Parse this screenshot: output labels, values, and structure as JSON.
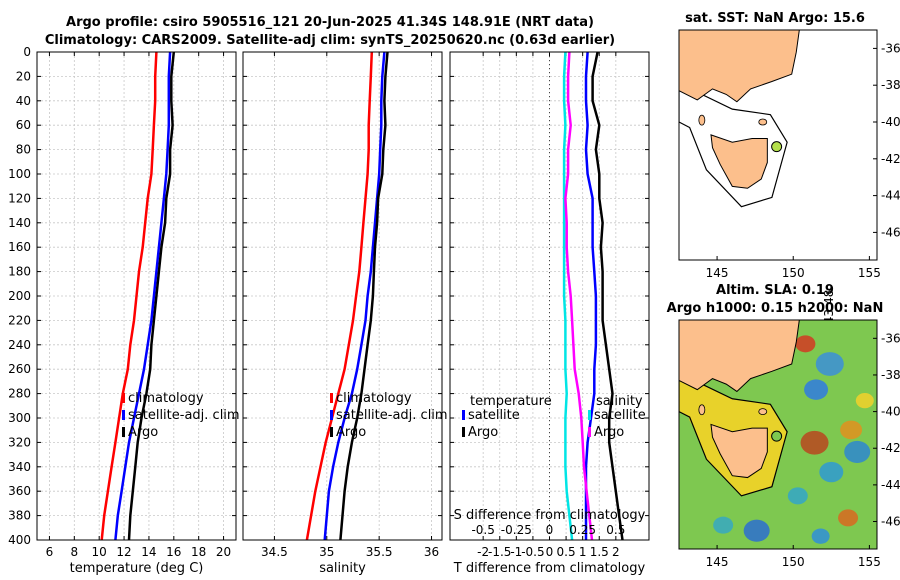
{
  "header": {
    "title_line1": "Argo profile: csiro 5905516_121 20-Jun-2025 41.34S 148.91E (NRT data)",
    "title_line2": "Climatology: CARS2009. Satellite-adj clim: synTS_20250620.nc (0.63d earlier)"
  },
  "credit": "©IMOS 25-Jun-2025 11:43:48",
  "colors": {
    "climatology": "#ff0000",
    "satellite": "#0000ff",
    "argo": "#000000",
    "temp_diff": "#ff00ff",
    "sal_diff": "#00e5e5",
    "land": "#fcbf8c",
    "sla_sea": "#7ec850"
  },
  "chart_data": [
    {
      "type": "line",
      "name": "temperature-panel",
      "xlabel": "temperature (deg C)",
      "ylabel": "depth",
      "xlim": [
        5,
        21
      ],
      "ylim": [
        400,
        0
      ],
      "xticks": [
        "6",
        "8",
        "10",
        "12",
        "14",
        "16",
        "18",
        "20"
      ],
      "xtick_values": [
        6,
        8,
        10,
        12,
        14,
        16,
        18,
        20
      ],
      "yticks": [
        "0",
        "20",
        "40",
        "60",
        "80",
        "100",
        "120",
        "140",
        "160",
        "180",
        "200",
        "220",
        "240",
        "260",
        "280",
        "300",
        "320",
        "340",
        "360",
        "380",
        "400"
      ],
      "ytick_values": [
        0,
        20,
        40,
        60,
        80,
        100,
        120,
        140,
        160,
        180,
        200,
        220,
        240,
        260,
        280,
        300,
        320,
        340,
        360,
        380,
        400
      ],
      "grid": true,
      "legend": [
        "climatology",
        "satellite-adj. clim",
        "Argo"
      ],
      "depth": [
        0,
        20,
        40,
        60,
        80,
        100,
        120,
        140,
        160,
        180,
        200,
        220,
        240,
        260,
        280,
        300,
        320,
        340,
        360,
        380,
        400
      ],
      "series": [
        {
          "name": "climatology",
          "values": [
            14.6,
            14.5,
            14.5,
            14.4,
            14.3,
            14.2,
            13.9,
            13.7,
            13.5,
            13.2,
            13.0,
            12.8,
            12.5,
            12.3,
            11.9,
            11.6,
            11.3,
            11.0,
            10.7,
            10.4,
            10.2
          ]
        },
        {
          "name": "satellite-adj. clim",
          "values": [
            15.7,
            15.6,
            15.6,
            15.6,
            15.5,
            15.4,
            15.2,
            15.0,
            14.8,
            14.6,
            14.4,
            14.2,
            13.9,
            13.6,
            13.2,
            12.8,
            12.4,
            12.1,
            11.8,
            11.5,
            11.3
          ]
        },
        {
          "name": "Argo",
          "values": [
            16.0,
            15.8,
            15.8,
            15.9,
            15.7,
            15.7,
            15.4,
            15.3,
            15.0,
            14.8,
            14.6,
            14.4,
            14.2,
            14.1,
            13.8,
            13.4,
            13.1,
            12.9,
            12.7,
            12.5,
            12.4
          ]
        }
      ]
    },
    {
      "type": "line",
      "name": "salinity-panel",
      "xlabel": "salinity",
      "xlim": [
        34.2,
        36.1
      ],
      "ylim": [
        400,
        0
      ],
      "xticks": [
        "34.5",
        "35",
        "35.5",
        "36"
      ],
      "xtick_values": [
        34.5,
        35,
        35.5,
        36
      ],
      "grid": true,
      "legend": [
        "climatology",
        "satellite-adj. clim",
        "Argo"
      ],
      "depth": [
        0,
        20,
        40,
        60,
        80,
        100,
        120,
        140,
        160,
        180,
        200,
        220,
        240,
        260,
        280,
        300,
        320,
        340,
        360,
        380,
        400
      ],
      "series": [
        {
          "name": "climatology",
          "values": [
            35.43,
            35.42,
            35.41,
            35.4,
            35.4,
            35.39,
            35.37,
            35.35,
            35.33,
            35.31,
            35.28,
            35.25,
            35.21,
            35.17,
            35.11,
            35.05,
            34.99,
            34.94,
            34.89,
            34.85,
            34.81
          ]
        },
        {
          "name": "satellite-adj. clim",
          "values": [
            35.55,
            35.53,
            35.52,
            35.52,
            35.51,
            35.5,
            35.48,
            35.46,
            35.44,
            35.42,
            35.39,
            35.37,
            35.33,
            35.29,
            35.24,
            35.17,
            35.11,
            35.06,
            35.02,
            35.0,
            34.98
          ]
        },
        {
          "name": "Argo",
          "values": [
            35.58,
            35.56,
            35.55,
            35.56,
            35.54,
            35.53,
            35.49,
            35.48,
            35.46,
            35.45,
            35.44,
            35.42,
            35.39,
            35.36,
            35.33,
            35.29,
            35.24,
            35.2,
            35.17,
            35.15,
            35.13
          ]
        }
      ]
    },
    {
      "type": "line",
      "name": "difference-panel",
      "xlabel": "T difference from climatology",
      "xlabel_top": "S difference from climatology",
      "xlim": [
        -3,
        3
      ],
      "ylim": [
        400,
        0
      ],
      "xticks": [
        "-2",
        "-1.5",
        "-1",
        "-0.5",
        "0",
        "0.5",
        "1",
        "1.5",
        "2"
      ],
      "xtick_values": [
        -2,
        -1.5,
        -1,
        -0.5,
        0,
        0.5,
        1,
        1.5,
        2
      ],
      "s_ticks": [
        "-0.5",
        "-0.25",
        "0",
        "0.25",
        "0.5"
      ],
      "s_tick_values": [
        -0.5,
        -0.25,
        0,
        0.25,
        0.5
      ],
      "legend_temperature_heading": "temperature",
      "legend_salinity_heading": "salinity",
      "legend": [
        "satellite",
        "Argo"
      ],
      "depth": [
        0,
        20,
        40,
        60,
        80,
        100,
        120,
        140,
        160,
        180,
        200,
        220,
        240,
        260,
        280,
        300,
        320,
        340,
        360,
        380,
        400
      ],
      "series": [
        {
          "name": "temperature satellite",
          "values": [
            1.15,
            1.1,
            1.1,
            1.15,
            1.1,
            1.15,
            1.3,
            1.3,
            1.3,
            1.35,
            1.4,
            1.4,
            1.4,
            1.35,
            1.35,
            1.25,
            1.15,
            1.1,
            1.1,
            1.1,
            1.1
          ]
        },
        {
          "name": "temperature Argo",
          "values": [
            1.45,
            1.3,
            1.3,
            1.5,
            1.4,
            1.5,
            1.5,
            1.6,
            1.55,
            1.6,
            1.6,
            1.6,
            1.7,
            1.8,
            1.9,
            1.8,
            1.8,
            1.9,
            2.0,
            2.1,
            2.2
          ]
        },
        {
          "name": "salinity satellite",
          "values": [
            0.12,
            0.11,
            0.11,
            0.12,
            0.11,
            0.11,
            0.11,
            0.11,
            0.11,
            0.11,
            0.11,
            0.12,
            0.12,
            0.12,
            0.13,
            0.12,
            0.12,
            0.12,
            0.13,
            0.15,
            0.17
          ]
        },
        {
          "name": "salinity Argo",
          "values": [
            0.15,
            0.14,
            0.14,
            0.16,
            0.14,
            0.14,
            0.12,
            0.13,
            0.13,
            0.14,
            0.16,
            0.17,
            0.18,
            0.19,
            0.22,
            0.24,
            0.25,
            0.26,
            0.28,
            0.3,
            0.32
          ]
        }
      ]
    },
    {
      "type": "map",
      "name": "sst-map",
      "title": "sat. SST: NaN Argo: 15.6",
      "xlim": [
        142.5,
        155.5
      ],
      "ylim": [
        -47.5,
        -35
      ],
      "xticks": [
        "145",
        "150",
        "155"
      ],
      "xtick_values": [
        145,
        150,
        155
      ],
      "yticks": [
        "-36",
        "-38",
        "-40",
        "-42",
        "-44",
        "-46"
      ],
      "ytick_values": [
        -36,
        -38,
        -40,
        -42,
        -44,
        -46
      ],
      "float_position": [
        148.91,
        -41.34
      ]
    },
    {
      "type": "map",
      "name": "sla-map",
      "title_line1": "Altim. SLA: 0.19",
      "title_line2": "Argo h1000: 0.15 h2000: NaN",
      "xlim": [
        142.5,
        155.5
      ],
      "ylim": [
        -47.5,
        -35
      ],
      "xticks": [
        "145",
        "150",
        "155"
      ],
      "xtick_values": [
        145,
        150,
        155
      ],
      "yticks": [
        "-36",
        "-38",
        "-40",
        "-42",
        "-44",
        "-46"
      ],
      "ytick_values": [
        -36,
        -38,
        -40,
        -42,
        -44,
        -46
      ],
      "float_position": [
        148.91,
        -41.34
      ]
    }
  ]
}
